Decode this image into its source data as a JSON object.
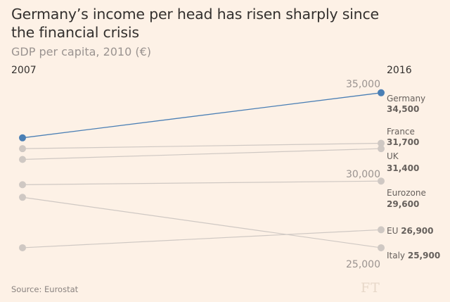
{
  "title": "Germany’s income per head has risen sharply since the financial crisis",
  "subtitle": "GDP per capita, 2010 (€)",
  "source": "Source: Eurostat",
  "logo": "FT",
  "colors": {
    "background": "#fdf1e6",
    "highlight": "#4a7fb5",
    "muted": "#cfc8c3"
  },
  "chart_data": {
    "type": "line",
    "chart_style": "slope",
    "x": [
      "2007",
      "2016"
    ],
    "y_ticks": [
      {
        "value": 35000,
        "label": "35,000"
      },
      {
        "value": 30000,
        "label": "30,000"
      },
      {
        "value": 25000,
        "label": "25,000"
      }
    ],
    "ylim": [
      25000,
      35000
    ],
    "series": [
      {
        "name": "Germany",
        "values": [
          32000,
          34500
        ],
        "end_label": "Germany",
        "end_value_label": "34,500",
        "highlight": true
      },
      {
        "name": "France",
        "values": [
          31400,
          31700
        ],
        "end_label": "France",
        "end_value_label": "31,700",
        "highlight": false
      },
      {
        "name": "UK",
        "values": [
          30800,
          31400
        ],
        "end_label": "UK",
        "end_value_label": "31,400",
        "highlight": false
      },
      {
        "name": "Eurozone",
        "values": [
          29400,
          29600
        ],
        "end_label": "Eurozone",
        "end_value_label": "29,600",
        "highlight": false
      },
      {
        "name": "EU",
        "values": [
          25900,
          26900
        ],
        "end_label": "EU",
        "end_value_label": "26,900",
        "highlight": false
      },
      {
        "name": "Italy",
        "values": [
          28700,
          25900
        ],
        "end_label": "Italy",
        "end_value_label": "25,900",
        "highlight": false
      }
    ]
  }
}
